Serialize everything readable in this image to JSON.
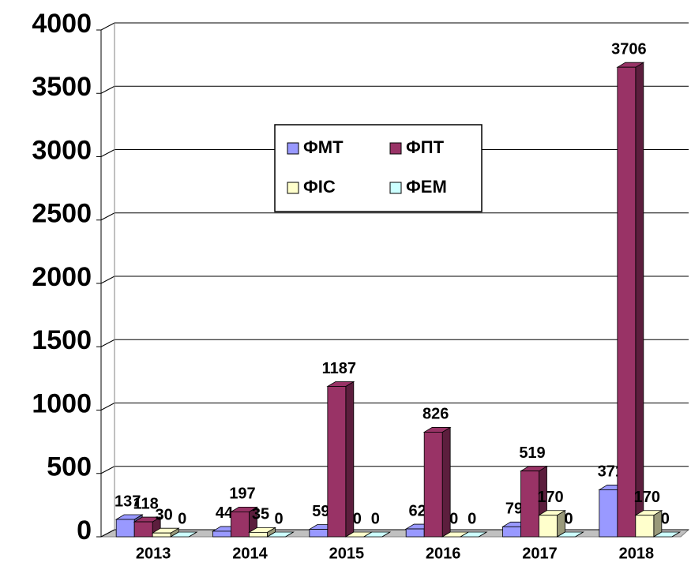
{
  "chart_data": {
    "type": "bar3d",
    "categories": [
      "2013",
      "2014",
      "2015",
      "2016",
      "2017",
      "2018"
    ],
    "series": [
      {
        "name": "ФМТ",
        "color": "#9999ff",
        "values": [
          137,
          44,
          59,
          62,
          79,
          371
        ]
      },
      {
        "name": "ФПТ",
        "color": "#993366",
        "values": [
          118,
          197,
          1187,
          826,
          519,
          3706
        ]
      },
      {
        "name": "ФІС",
        "color": "#ffffcc",
        "values": [
          30,
          35,
          0,
          0,
          170,
          170
        ]
      },
      {
        "name": "ФЕМ",
        "color": "#ccffff",
        "values": [
          0,
          0,
          0,
          0,
          0,
          0
        ]
      }
    ],
    "ylim": [
      0,
      4000
    ],
    "yticks": [
      0,
      500,
      1000,
      1500,
      2000,
      2500,
      3000,
      3500,
      4000
    ],
    "grid": true,
    "legend": "center"
  }
}
